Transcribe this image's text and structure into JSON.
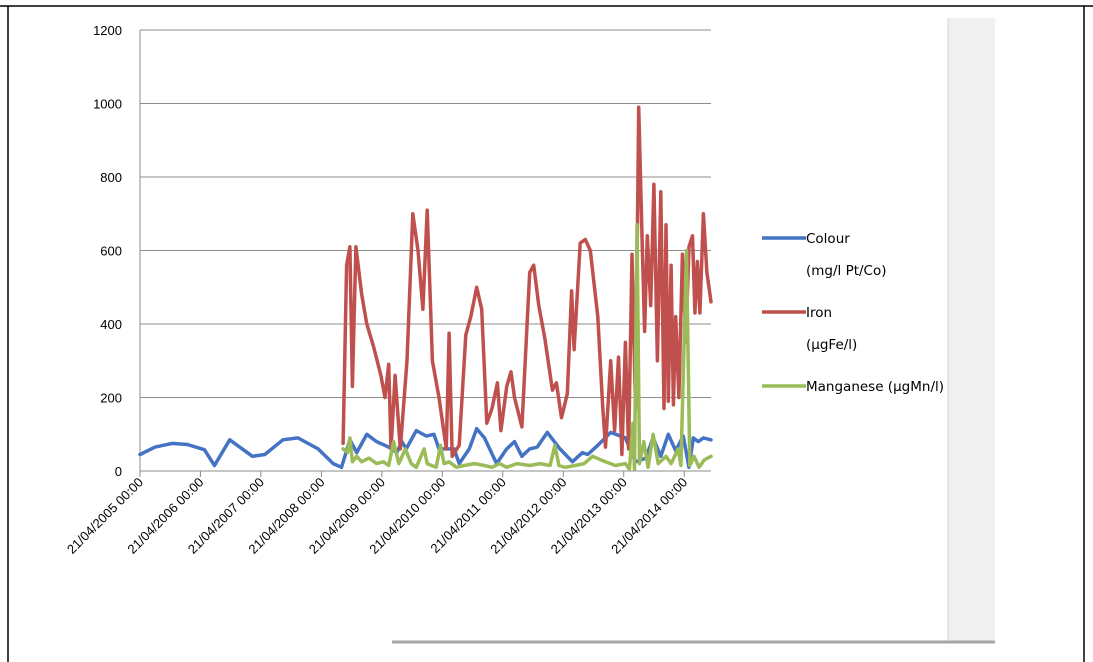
{
  "chart_data": {
    "type": "line",
    "title": "",
    "xlabel": "",
    "ylabel": "",
    "ylim": [
      0,
      1200
    ],
    "y_ticks": [
      "0",
      "200",
      "400",
      "600",
      "800",
      "1000",
      "1200"
    ],
    "x_range": [
      "2005-04-21",
      "2014-09-30"
    ],
    "x_ticks": [
      {
        "date": "2005-04-21",
        "label": "21/04/2005 00:00"
      },
      {
        "date": "2006-04-21",
        "label": "21/04/2006 00:00"
      },
      {
        "date": "2007-04-21",
        "label": "21/04/2007 00:00"
      },
      {
        "date": "2008-04-21",
        "label": "21/04/2008 00:00"
      },
      {
        "date": "2009-04-21",
        "label": "21/04/2009 00:00"
      },
      {
        "date": "2010-04-21",
        "label": "21/04/2010 00:00"
      },
      {
        "date": "2011-04-21",
        "label": "21/04/2011 00:00"
      },
      {
        "date": "2012-04-21",
        "label": "21/04/2012 00:00"
      },
      {
        "date": "2013-04-21",
        "label": "21/04/2013 00:00"
      },
      {
        "date": "2014-04-21",
        "label": "21/04/2014 00:00"
      }
    ],
    "grid": true,
    "legend_position": "right",
    "series": [
      {
        "name_lines": [
          "Colour",
          "(mg/l Pt/Co)"
        ],
        "color": "#4472c4",
        "points": [
          [
            "2005-04-21",
            45
          ],
          [
            "2005-07-21",
            65
          ],
          [
            "2005-11-01",
            75
          ],
          [
            "2006-02-01",
            72
          ],
          [
            "2006-05-15",
            58
          ],
          [
            "2006-07-15",
            15
          ],
          [
            "2006-10-15",
            85
          ],
          [
            "2007-03-01",
            40
          ],
          [
            "2007-05-15",
            45
          ],
          [
            "2007-09-01",
            85
          ],
          [
            "2007-12-01",
            90
          ],
          [
            "2008-04-01",
            60
          ],
          [
            "2008-07-01",
            20
          ],
          [
            "2008-08-20",
            10
          ],
          [
            "2008-10-10",
            85
          ],
          [
            "2008-11-20",
            50
          ],
          [
            "2009-01-20",
            100
          ],
          [
            "2009-03-20",
            80
          ],
          [
            "2009-06-01",
            65
          ],
          [
            "2009-07-20",
            50
          ],
          [
            "2009-08-20",
            80
          ],
          [
            "2009-09-15",
            60
          ],
          [
            "2009-11-15",
            110
          ],
          [
            "2010-01-15",
            95
          ],
          [
            "2010-03-01",
            100
          ],
          [
            "2010-04-01",
            60
          ],
          [
            "2010-07-01",
            60
          ],
          [
            "2010-08-01",
            20
          ],
          [
            "2010-10-01",
            60
          ],
          [
            "2010-11-15",
            115
          ],
          [
            "2011-01-01",
            90
          ],
          [
            "2011-03-15",
            20
          ],
          [
            "2011-05-15",
            60
          ],
          [
            "2011-07-01",
            80
          ],
          [
            "2011-08-15",
            40
          ],
          [
            "2011-10-01",
            60
          ],
          [
            "2011-11-15",
            65
          ],
          [
            "2012-01-15",
            105
          ],
          [
            "2012-04-01",
            60
          ],
          [
            "2012-06-15",
            25
          ],
          [
            "2012-08-15",
            50
          ],
          [
            "2012-09-15",
            45
          ],
          [
            "2012-11-15",
            70
          ],
          [
            "2013-02-01",
            105
          ],
          [
            "2013-05-01",
            90
          ],
          [
            "2013-07-01",
            25
          ],
          [
            "2013-09-01",
            35
          ],
          [
            "2013-10-15",
            90
          ],
          [
            "2013-12-01",
            40
          ],
          [
            "2014-01-15",
            100
          ],
          [
            "2014-03-01",
            55
          ],
          [
            "2014-04-15",
            95
          ],
          [
            "2014-05-20",
            10
          ],
          [
            "2014-06-15",
            90
          ],
          [
            "2014-07-15",
            80
          ],
          [
            "2014-08-15",
            90
          ],
          [
            "2014-09-30",
            85
          ]
        ]
      },
      {
        "name_lines": [
          "Iron",
          "(µgFe/l)"
        ],
        "color": "#c0504d",
        "points": [
          [
            "2008-08-30",
            75
          ],
          [
            "2008-09-20",
            560
          ],
          [
            "2008-10-10",
            610
          ],
          [
            "2008-10-25",
            230
          ],
          [
            "2008-11-15",
            610
          ],
          [
            "2008-12-20",
            480
          ],
          [
            "2009-01-20",
            400
          ],
          [
            "2009-03-01",
            340
          ],
          [
            "2009-04-15",
            260
          ],
          [
            "2009-05-10",
            200
          ],
          [
            "2009-06-01",
            290
          ],
          [
            "2009-06-15",
            60
          ],
          [
            "2009-07-10",
            260
          ],
          [
            "2009-08-10",
            60
          ],
          [
            "2009-09-20",
            300
          ],
          [
            "2009-10-25",
            700
          ],
          [
            "2009-11-25",
            600
          ],
          [
            "2009-12-25",
            440
          ],
          [
            "2010-01-20",
            710
          ],
          [
            "2010-02-20",
            300
          ],
          [
            "2010-04-01",
            200
          ],
          [
            "2010-05-15",
            60
          ],
          [
            "2010-06-01",
            375
          ],
          [
            "2010-06-20",
            40
          ],
          [
            "2010-08-01",
            70
          ],
          [
            "2010-09-10",
            370
          ],
          [
            "2010-10-10",
            420
          ],
          [
            "2010-11-15",
            500
          ],
          [
            "2010-12-15",
            440
          ],
          [
            "2011-01-15",
            130
          ],
          [
            "2011-02-15",
            170
          ],
          [
            "2011-03-20",
            240
          ],
          [
            "2011-04-10",
            110
          ],
          [
            "2011-05-15",
            230
          ],
          [
            "2011-06-10",
            270
          ],
          [
            "2011-07-01",
            200
          ],
          [
            "2011-08-15",
            120
          ],
          [
            "2011-10-01",
            540
          ],
          [
            "2011-10-25",
            560
          ],
          [
            "2011-11-25",
            450
          ],
          [
            "2012-01-01",
            360
          ],
          [
            "2012-02-15",
            220
          ],
          [
            "2012-03-10",
            240
          ],
          [
            "2012-04-10",
            145
          ],
          [
            "2012-05-15",
            210
          ],
          [
            "2012-06-10",
            490
          ],
          [
            "2012-06-25",
            330
          ],
          [
            "2012-08-01",
            620
          ],
          [
            "2012-09-01",
            630
          ],
          [
            "2012-10-01",
            600
          ],
          [
            "2012-11-15",
            420
          ],
          [
            "2012-12-15",
            175
          ],
          [
            "2013-01-01",
            65
          ],
          [
            "2013-02-01",
            300
          ],
          [
            "2013-02-25",
            110
          ],
          [
            "2013-03-20",
            310
          ],
          [
            "2013-04-10",
            45
          ],
          [
            "2013-05-01",
            350
          ],
          [
            "2013-05-20",
            60
          ],
          [
            "2013-06-10",
            590
          ],
          [
            "2013-07-01",
            170
          ],
          [
            "2013-07-20",
            990
          ],
          [
            "2013-08-10",
            630
          ],
          [
            "2013-08-25",
            380
          ],
          [
            "2013-09-10",
            640
          ],
          [
            "2013-10-01",
            450
          ],
          [
            "2013-10-20",
            780
          ],
          [
            "2013-11-10",
            300
          ],
          [
            "2013-12-01",
            760
          ],
          [
            "2013-12-20",
            170
          ],
          [
            "2014-01-01",
            670
          ],
          [
            "2014-01-15",
            190
          ],
          [
            "2014-02-01",
            560
          ],
          [
            "2014-02-15",
            180
          ],
          [
            "2014-03-01",
            420
          ],
          [
            "2014-03-20",
            200
          ],
          [
            "2014-04-10",
            590
          ],
          [
            "2014-05-01",
            350
          ],
          [
            "2014-05-20",
            610
          ],
          [
            "2014-06-10",
            640
          ],
          [
            "2014-06-25",
            430
          ],
          [
            "2014-07-10",
            570
          ],
          [
            "2014-07-25",
            430
          ],
          [
            "2014-08-15",
            700
          ],
          [
            "2014-09-05",
            540
          ],
          [
            "2014-09-30",
            460
          ]
        ]
      },
      {
        "name_lines": [
          "Manganese (µgMn/l)"
        ],
        "color": "#9bbb59",
        "points": [
          [
            "2008-08-30",
            60
          ],
          [
            "2008-09-25",
            50
          ],
          [
            "2008-10-10",
            90
          ],
          [
            "2008-10-25",
            25
          ],
          [
            "2008-11-20",
            40
          ],
          [
            "2008-12-20",
            25
          ],
          [
            "2009-02-01",
            35
          ],
          [
            "2009-03-20",
            20
          ],
          [
            "2009-05-01",
            25
          ],
          [
            "2009-06-01",
            15
          ],
          [
            "2009-07-01",
            80
          ],
          [
            "2009-08-01",
            20
          ],
          [
            "2009-09-10",
            60
          ],
          [
            "2009-10-15",
            20
          ],
          [
            "2009-11-15",
            10
          ],
          [
            "2010-01-01",
            60
          ],
          [
            "2010-01-20",
            20
          ],
          [
            "2010-02-15",
            15
          ],
          [
            "2010-03-15",
            10
          ],
          [
            "2010-04-10",
            70
          ],
          [
            "2010-05-01",
            20
          ],
          [
            "2010-06-01",
            25
          ],
          [
            "2010-07-15",
            10
          ],
          [
            "2010-09-01",
            15
          ],
          [
            "2010-11-01",
            20
          ],
          [
            "2011-01-01",
            15
          ],
          [
            "2011-02-15",
            10
          ],
          [
            "2011-04-01",
            20
          ],
          [
            "2011-05-15",
            10
          ],
          [
            "2011-07-15",
            20
          ],
          [
            "2011-10-01",
            15
          ],
          [
            "2011-12-01",
            20
          ],
          [
            "2012-02-01",
            15
          ],
          [
            "2012-03-01",
            70
          ],
          [
            "2012-03-25",
            15
          ],
          [
            "2012-05-01",
            10
          ],
          [
            "2012-07-01",
            15
          ],
          [
            "2012-08-25",
            20
          ],
          [
            "2012-10-15",
            40
          ],
          [
            "2013-01-01",
            25
          ],
          [
            "2013-03-01",
            15
          ],
          [
            "2013-05-01",
            20
          ],
          [
            "2013-05-25",
            5
          ],
          [
            "2013-06-15",
            130
          ],
          [
            "2013-06-25",
            5
          ],
          [
            "2013-07-10",
            670
          ],
          [
            "2013-07-25",
            20
          ],
          [
            "2013-08-20",
            80
          ],
          [
            "2013-09-15",
            10
          ],
          [
            "2013-10-15",
            100
          ],
          [
            "2013-11-15",
            20
          ],
          [
            "2014-01-01",
            40
          ],
          [
            "2014-02-01",
            20
          ],
          [
            "2014-03-15",
            60
          ],
          [
            "2014-04-01",
            15
          ],
          [
            "2014-05-05",
            600
          ],
          [
            "2014-05-25",
            15
          ],
          [
            "2014-06-20",
            40
          ],
          [
            "2014-07-20",
            10
          ],
          [
            "2014-08-20",
            30
          ],
          [
            "2014-09-30",
            40
          ]
        ]
      }
    ]
  }
}
